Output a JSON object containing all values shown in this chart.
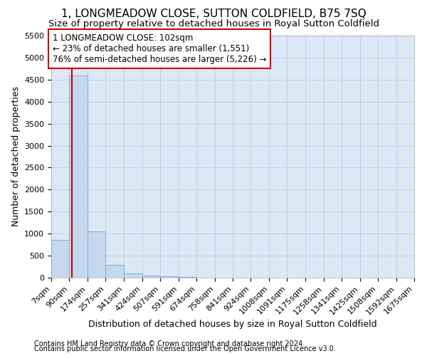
{
  "title": "1, LONGMEADOW CLOSE, SUTTON COLDFIELD, B75 7SQ",
  "subtitle": "Size of property relative to detached houses in Royal Sutton Coldfield",
  "xlabel": "Distribution of detached houses by size in Royal Sutton Coldfield",
  "ylabel": "Number of detached properties",
  "footnote1": "Contains HM Land Registry data © Crown copyright and database right 2024.",
  "footnote2": "Contains public sector information licensed under the Open Government Licence v3.0.",
  "bar_edges": [
    7,
    90,
    174,
    257,
    341,
    424,
    507,
    591,
    674,
    758,
    841,
    924,
    1008,
    1091,
    1175,
    1258,
    1341,
    1425,
    1508,
    1592,
    1675
  ],
  "bar_heights": [
    850,
    4600,
    1050,
    290,
    100,
    50,
    30,
    20,
    0,
    0,
    0,
    0,
    0,
    0,
    0,
    0,
    0,
    0,
    0,
    0
  ],
  "bar_color": "#c5d8ee",
  "bar_edge_color": "#7bafd4",
  "property_size": 102,
  "property_line_color": "#cc0000",
  "annotation_line1": "1 LONGMEADOW CLOSE: 102sqm",
  "annotation_line2": "← 23% of detached houses are smaller (1,551)",
  "annotation_line3": "76% of semi-detached houses are larger (5,226) →",
  "annotation_box_color": "#cc0000",
  "ylim": [
    0,
    5500
  ],
  "yticks": [
    0,
    500,
    1000,
    1500,
    2000,
    2500,
    3000,
    3500,
    4000,
    4500,
    5000,
    5500
  ],
  "background_color": "#ffffff",
  "plot_bg_color": "#dce8f5",
  "grid_color": "#b8cfe0",
  "title_fontsize": 11,
  "subtitle_fontsize": 9.5,
  "axis_label_fontsize": 9,
  "tick_fontsize": 8,
  "annotation_fontsize": 8.5,
  "footnote_fontsize": 7
}
